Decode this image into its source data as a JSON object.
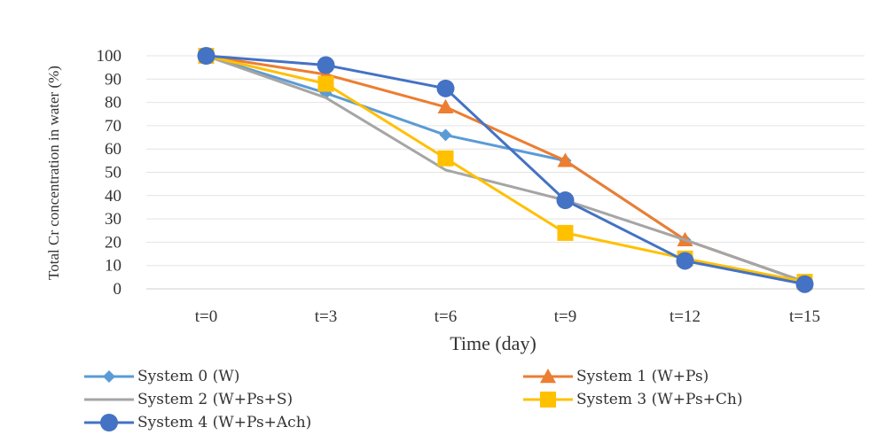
{
  "chart_data": {
    "type": "line",
    "xlabel": "Time (day)",
    "ylabel": "Total Cr concentration in water (%)",
    "categories": [
      "t=0",
      "t=3",
      "t=6",
      "t=9",
      "t=12",
      "t=15"
    ],
    "ylim": [
      0,
      100
    ],
    "yticks": [
      0,
      10,
      20,
      30,
      40,
      50,
      60,
      70,
      80,
      90,
      100
    ],
    "grid": true,
    "legend_position": "bottom",
    "series": [
      {
        "name": "System 0 (W)",
        "values": [
          100,
          84,
          66,
          55,
          21,
          3
        ],
        "color": "#5B9BD5",
        "marker": "diamond"
      },
      {
        "name": "System 1 (W+Ps)",
        "values": [
          100,
          92,
          78,
          55,
          21,
          3
        ],
        "color": "#ED7D31",
        "marker": "triangle"
      },
      {
        "name": "System 2 (W+Ps+S)",
        "values": [
          100,
          82,
          51,
          38,
          21,
          3
        ],
        "color": "#A5A5A5",
        "marker": "none"
      },
      {
        "name": "System 3 (W+Ps+Ch)",
        "values": [
          100,
          88,
          56,
          24,
          13,
          3
        ],
        "color": "#FFC000",
        "marker": "square"
      },
      {
        "name": "System 4 (W+Ps+Ach)",
        "values": [
          100,
          96,
          86,
          38,
          12,
          2
        ],
        "color": "#4472C4",
        "marker": "circle"
      }
    ]
  }
}
